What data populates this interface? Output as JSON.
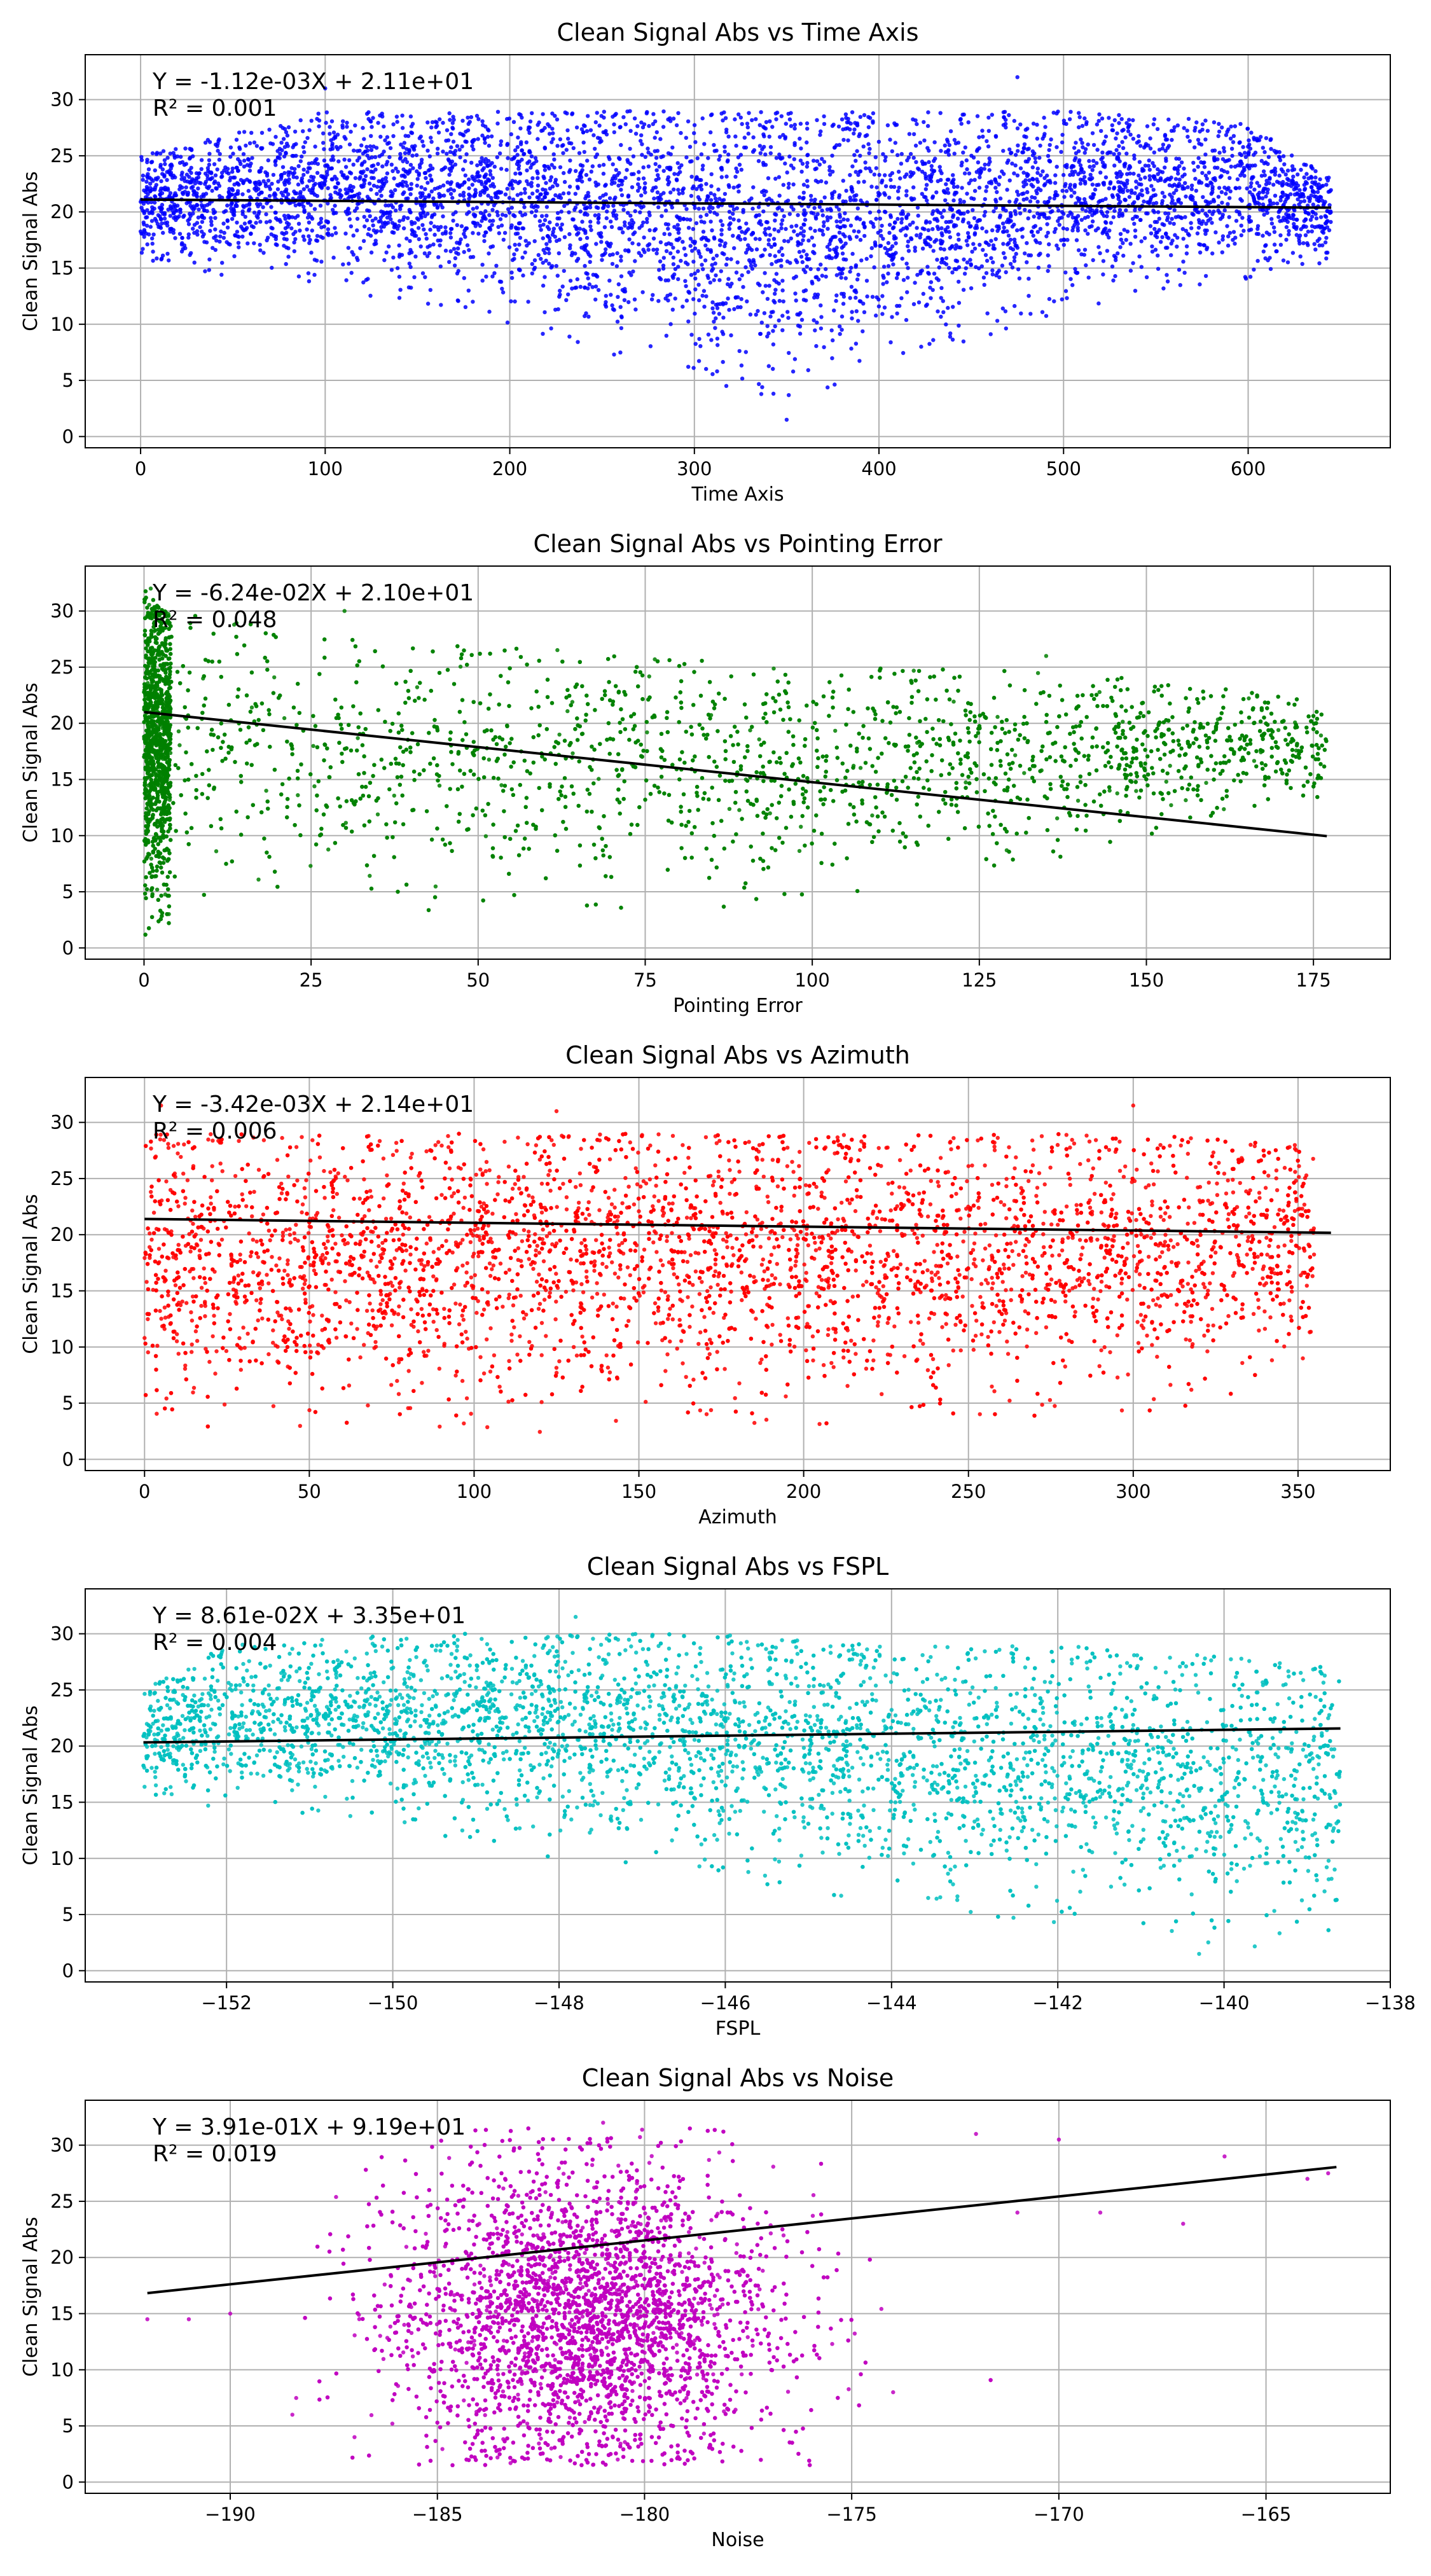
{
  "chart_data": [
    {
      "type": "scatter",
      "title": "Clean Signal Abs vs Time Axis",
      "xlabel": "Time Axis",
      "ylabel": "Clean Signal Abs",
      "color": "#0000ff",
      "xlim": [
        -30,
        677
      ],
      "ylim": [
        -1,
        34
      ],
      "xticks": [
        0,
        100,
        200,
        300,
        400,
        500,
        600
      ],
      "yticks": [
        0,
        5,
        10,
        15,
        20,
        25,
        30
      ],
      "grid": true,
      "equation": "Y = -1.12e-03X + 2.11e+01",
      "r2": "R² = 0.001",
      "fit": {
        "slope": -0.00112,
        "intercept": 21.1,
        "x_range": [
          0,
          645
        ]
      },
      "points_envelope": [
        [
          0,
          15,
          25
        ],
        [
          100,
          13,
          29
        ],
        [
          200,
          10,
          29
        ],
        [
          300,
          5,
          29
        ],
        [
          350,
          3,
          29
        ],
        [
          400,
          6,
          29
        ],
        [
          500,
          11,
          29
        ],
        [
          600,
          14,
          28
        ],
        [
          645,
          15,
          23
        ]
      ],
      "outliers": [
        [
          475,
          32
        ],
        [
          100,
          31
        ],
        [
          350,
          1.5
        ]
      ]
    },
    {
      "type": "scatter",
      "title": "Clean Signal Abs vs Pointing Error",
      "xlabel": "Pointing Error",
      "ylabel": "Clean Signal Abs",
      "color": "#008000",
      "xlim": [
        -8.8,
        186.5
      ],
      "ylim": [
        -1,
        34
      ],
      "xticks": [
        0,
        25,
        50,
        75,
        100,
        125,
        150,
        175
      ],
      "yticks": [
        0,
        5,
        10,
        15,
        20,
        25,
        30
      ],
      "grid": true,
      "equation": "Y = -6.24e-02X + 2.10e+01",
      "r2": "R² = 0.048",
      "fit": {
        "slope": -0.0624,
        "intercept": 21.0,
        "x_range": [
          0,
          177
        ]
      },
      "points_envelope": [
        [
          0,
          1,
          32
        ],
        [
          3,
          2,
          30
        ],
        [
          25,
          3,
          28
        ],
        [
          50,
          3,
          27
        ],
        [
          75,
          3,
          26
        ],
        [
          100,
          4,
          25
        ],
        [
          125,
          6,
          25
        ],
        [
          150,
          10,
          24
        ],
        [
          177,
          13,
          22
        ]
      ],
      "outliers": [
        [
          1,
          32
        ],
        [
          30,
          30
        ],
        [
          135,
          26
        ]
      ]
    },
    {
      "type": "scatter",
      "title": "Clean Signal Abs vs Azimuth",
      "xlabel": "Azimuth",
      "ylabel": "Clean Signal Abs",
      "color": "#ff0000",
      "xlim": [
        -18,
        378
      ],
      "ylim": [
        -1,
        34
      ],
      "xticks": [
        0,
        50,
        100,
        150,
        200,
        250,
        300,
        350
      ],
      "yticks": [
        0,
        5,
        10,
        15,
        20,
        25,
        30
      ],
      "grid": true,
      "equation": "Y = -3.42e-03X + 2.14e+01",
      "r2": "R² = 0.006",
      "fit": {
        "slope": -0.00342,
        "intercept": 21.4,
        "x_range": [
          0,
          360
        ]
      },
      "points_envelope": [
        [
          0,
          2,
          29
        ],
        [
          50,
          2,
          29
        ],
        [
          100,
          2,
          29
        ],
        [
          150,
          3,
          29
        ],
        [
          200,
          3,
          29
        ],
        [
          250,
          4,
          29
        ],
        [
          300,
          3,
          29
        ],
        [
          355,
          8,
          28
        ]
      ],
      "outliers": [
        [
          5,
          31.5
        ],
        [
          125,
          31
        ],
        [
          300,
          31.5
        ]
      ]
    },
    {
      "type": "scatter",
      "title": "Clean Signal Abs vs FSPL",
      "xlabel": "FSPL",
      "ylabel": "Clean Signal Abs",
      "color": "#00bfbf",
      "xlim": [
        -153.7,
        -138.0
      ],
      "ylim": [
        -1,
        34
      ],
      "xticks": [
        -152,
        -150,
        -148,
        -146,
        -144,
        -142,
        -140,
        -138
      ],
      "yticks": [
        0,
        5,
        10,
        15,
        20,
        25,
        30
      ],
      "grid": true,
      "equation": "Y = 8.61e-02X + 3.35e+01",
      "r2": "R² = 0.004",
      "fit": {
        "slope": 0.0861,
        "intercept": 33.5,
        "x_range": [
          -153.0,
          -138.6
        ]
      },
      "points_envelope": [
        [
          -153,
          15,
          25
        ],
        [
          -152,
          14,
          29
        ],
        [
          -150,
          12,
          30
        ],
        [
          -148,
          10,
          30
        ],
        [
          -146,
          8,
          30
        ],
        [
          -144,
          6,
          29
        ],
        [
          -142,
          4,
          29
        ],
        [
          -140,
          2,
          28
        ],
        [
          -138.6,
          2,
          27
        ]
      ],
      "outliers": [
        [
          -147.8,
          31.5
        ],
        [
          -140.3,
          1.5
        ]
      ]
    },
    {
      "type": "scatter",
      "title": "Clean Signal Abs vs Noise",
      "xlabel": "Noise",
      "ylabel": "Clean Signal Abs",
      "color": "#bf00bf",
      "xlim": [
        -193.5,
        -162.0
      ],
      "ylim": [
        -1,
        34
      ],
      "xticks": [
        -190,
        -185,
        -180,
        -175,
        -170,
        -165
      ],
      "yticks": [
        0,
        5,
        10,
        15,
        20,
        25,
        30
      ],
      "grid": true,
      "equation": "Y = 3.91e-01X + 9.19e+01",
      "r2": "R² = 0.019",
      "fit": {
        "slope": 0.391,
        "intercept": 91.9,
        "x_range": [
          -192,
          -163.3
        ]
      },
      "cluster": {
        "cx": -181.5,
        "cy": 15,
        "sx": 2.3,
        "sy": 6.5
      },
      "outliers": [
        [
          -192,
          14.5
        ],
        [
          -191,
          14.5
        ],
        [
          -190,
          15
        ],
        [
          -188.5,
          6
        ],
        [
          -187,
          4
        ],
        [
          -181,
          32
        ],
        [
          -174,
          8
        ],
        [
          -172,
          31
        ],
        [
          -171,
          24
        ],
        [
          -170,
          30.5
        ],
        [
          -169,
          24
        ],
        [
          -167,
          23
        ],
        [
          -166,
          29
        ],
        [
          -164,
          27
        ],
        [
          -163.5,
          27.5
        ]
      ]
    }
  ]
}
